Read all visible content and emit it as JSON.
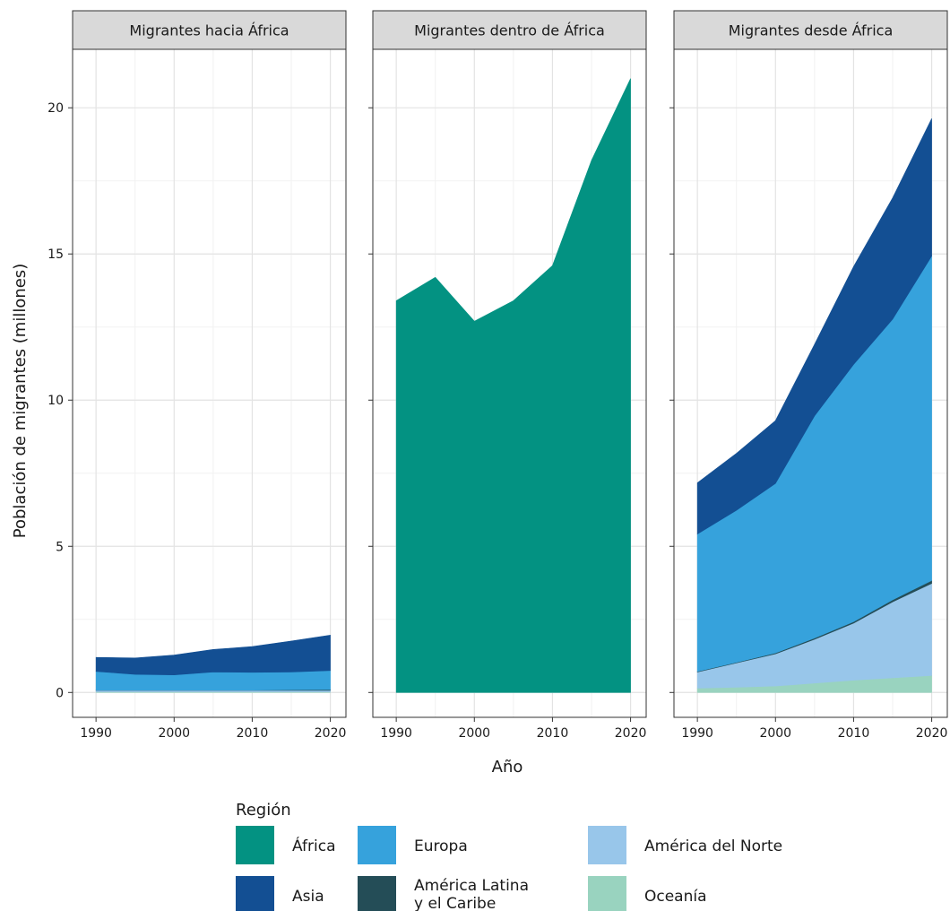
{
  "chart_data": {
    "type": "area",
    "stacked": true,
    "xlabel": "Año",
    "ylabel": "Población de migrantes (millones)",
    "xlim": [
      1987,
      2022
    ],
    "ylim": [
      -0.85,
      22
    ],
    "x_ticks": [
      1990,
      2000,
      2010,
      2020
    ],
    "y_ticks": [
      0,
      5,
      10,
      15,
      20
    ],
    "grid": true,
    "legend": {
      "title": "Región",
      "position": "bottom",
      "entries": [
        {
          "key": "africa",
          "label": "África",
          "color": "#039282"
        },
        {
          "key": "asia",
          "label": "Asia",
          "color": "#134F93"
        },
        {
          "key": "europa",
          "label": "Europa",
          "color": "#36A2DC"
        },
        {
          "key": "latam",
          "label": "América Latina y el Caribe",
          "label_lines": [
            "América Latina",
            "y el Caribe"
          ],
          "color": "#244D57"
        },
        {
          "key": "norte",
          "label": "América del Norte",
          "color": "#98C6EA"
        },
        {
          "key": "oceania",
          "label": "Oceanía",
          "color": "#99D3BF"
        }
      ]
    },
    "panels": [
      {
        "title": "Migrantes hacia África",
        "x": [
          1990,
          1995,
          2000,
          2005,
          2010,
          2015,
          2020
        ],
        "series": [
          {
            "key": "oceania",
            "values": [
              0.02,
              0.02,
              0.02,
              0.02,
              0.02,
              0.02,
              0.02
            ]
          },
          {
            "key": "norte",
            "values": [
              0.05,
              0.05,
              0.05,
              0.05,
              0.05,
              0.05,
              0.05
            ]
          },
          {
            "key": "latam",
            "values": [
              0.01,
              0.01,
              0.01,
              0.01,
              0.01,
              0.02,
              0.03
            ]
          },
          {
            "key": "europa",
            "values": [
              0.64,
              0.54,
              0.52,
              0.62,
              0.61,
              0.61,
              0.65
            ]
          },
          {
            "key": "asia",
            "values": [
              0.48,
              0.56,
              0.68,
              0.77,
              0.88,
              1.06,
              1.21
            ]
          }
        ]
      },
      {
        "title": "Migrantes dentro de África",
        "x": [
          1990,
          1995,
          2000,
          2005,
          2010,
          2015,
          2020
        ],
        "series": [
          {
            "key": "africa",
            "values": [
              13.4,
              14.2,
              12.7,
              13.4,
              14.6,
              18.2,
              21.0
            ]
          }
        ]
      },
      {
        "title": "Migrantes desde África",
        "x": [
          1990,
          1995,
          2000,
          2005,
          2010,
          2015,
          2020
        ],
        "series": [
          {
            "key": "oceania",
            "values": [
              0.15,
              0.18,
              0.22,
              0.32,
              0.42,
              0.5,
              0.58
            ]
          },
          {
            "key": "norte",
            "values": [
              0.55,
              0.83,
              1.1,
              1.5,
              1.95,
              2.6,
              3.15
            ]
          },
          {
            "key": "latam",
            "values": [
              0.02,
              0.02,
              0.03,
              0.04,
              0.05,
              0.07,
              0.1
            ]
          },
          {
            "key": "europa",
            "values": [
              4.7,
              5.2,
              5.8,
              7.6,
              8.8,
              9.6,
              11.1
            ]
          },
          {
            "key": "asia",
            "values": [
              1.75,
              1.95,
              2.15,
              2.45,
              3.35,
              4.15,
              4.7
            ]
          }
        ]
      }
    ]
  }
}
